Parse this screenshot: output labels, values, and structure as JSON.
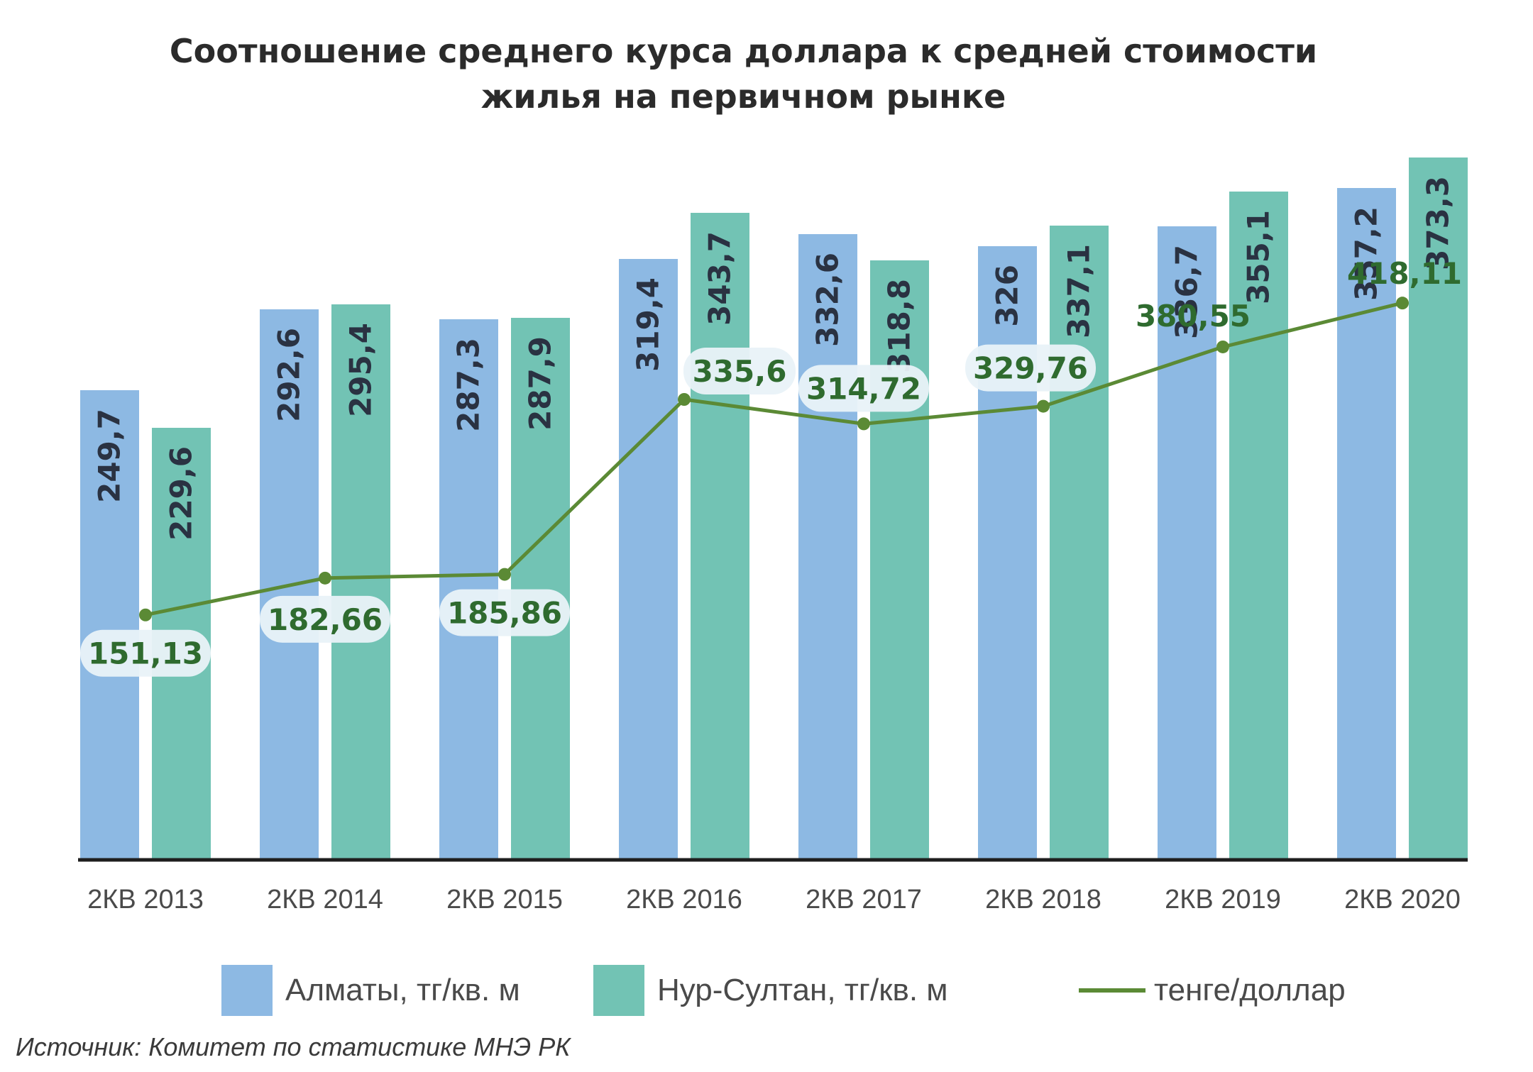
{
  "chart_data": {
    "type": "bar",
    "title_lines": [
      "Соотношение среднего курса доллара к средней стоимости",
      "жилья на первичном рынке"
    ],
    "categories": [
      "2КВ 2013",
      "2КВ 2014",
      "2КВ 2015",
      "2КВ 2016",
      "2КВ 2017",
      "2КВ 2018",
      "2КВ 2019",
      "2КВ 2020"
    ],
    "series": [
      {
        "name": "Алматы, тг/кв. м",
        "kind": "bar",
        "color": "#8db9e3",
        "values": [
          249.7,
          292.6,
          287.3,
          319.4,
          332.6,
          326,
          336.7,
          357.2
        ],
        "labels": [
          "249,7",
          "292,6",
          "287,3",
          "319,4",
          "332,6",
          "326",
          "336,7",
          "357,2"
        ]
      },
      {
        "name": "Нур-Султан, тг/кв. м",
        "kind": "bar",
        "color": "#72c3b4",
        "values": [
          229.6,
          295.4,
          287.9,
          343.7,
          318.8,
          337.1,
          355.1,
          373.3
        ],
        "labels": [
          "229,6",
          "295,4",
          "287,9",
          "343,7",
          "318,8",
          "337,1",
          "355,1",
          "373,3"
        ]
      },
      {
        "name": "тенге/доллар",
        "kind": "line",
        "color": "#5b8a35",
        "values": [
          151.13,
          182.66,
          185.86,
          335.6,
          314.72,
          329.76,
          380.55,
          418.11
        ],
        "labels": [
          "151,13",
          "182,66",
          "185,86",
          "335,6",
          "314,72",
          "329,76",
          "380,55",
          "418,11"
        ]
      }
    ],
    "label_color": "#2a3242",
    "line_label_color": "#2f6b2f",
    "grid": false,
    "legend_position": "bottom"
  },
  "source": "Источник: Комитет по статистике МНЭ РК"
}
